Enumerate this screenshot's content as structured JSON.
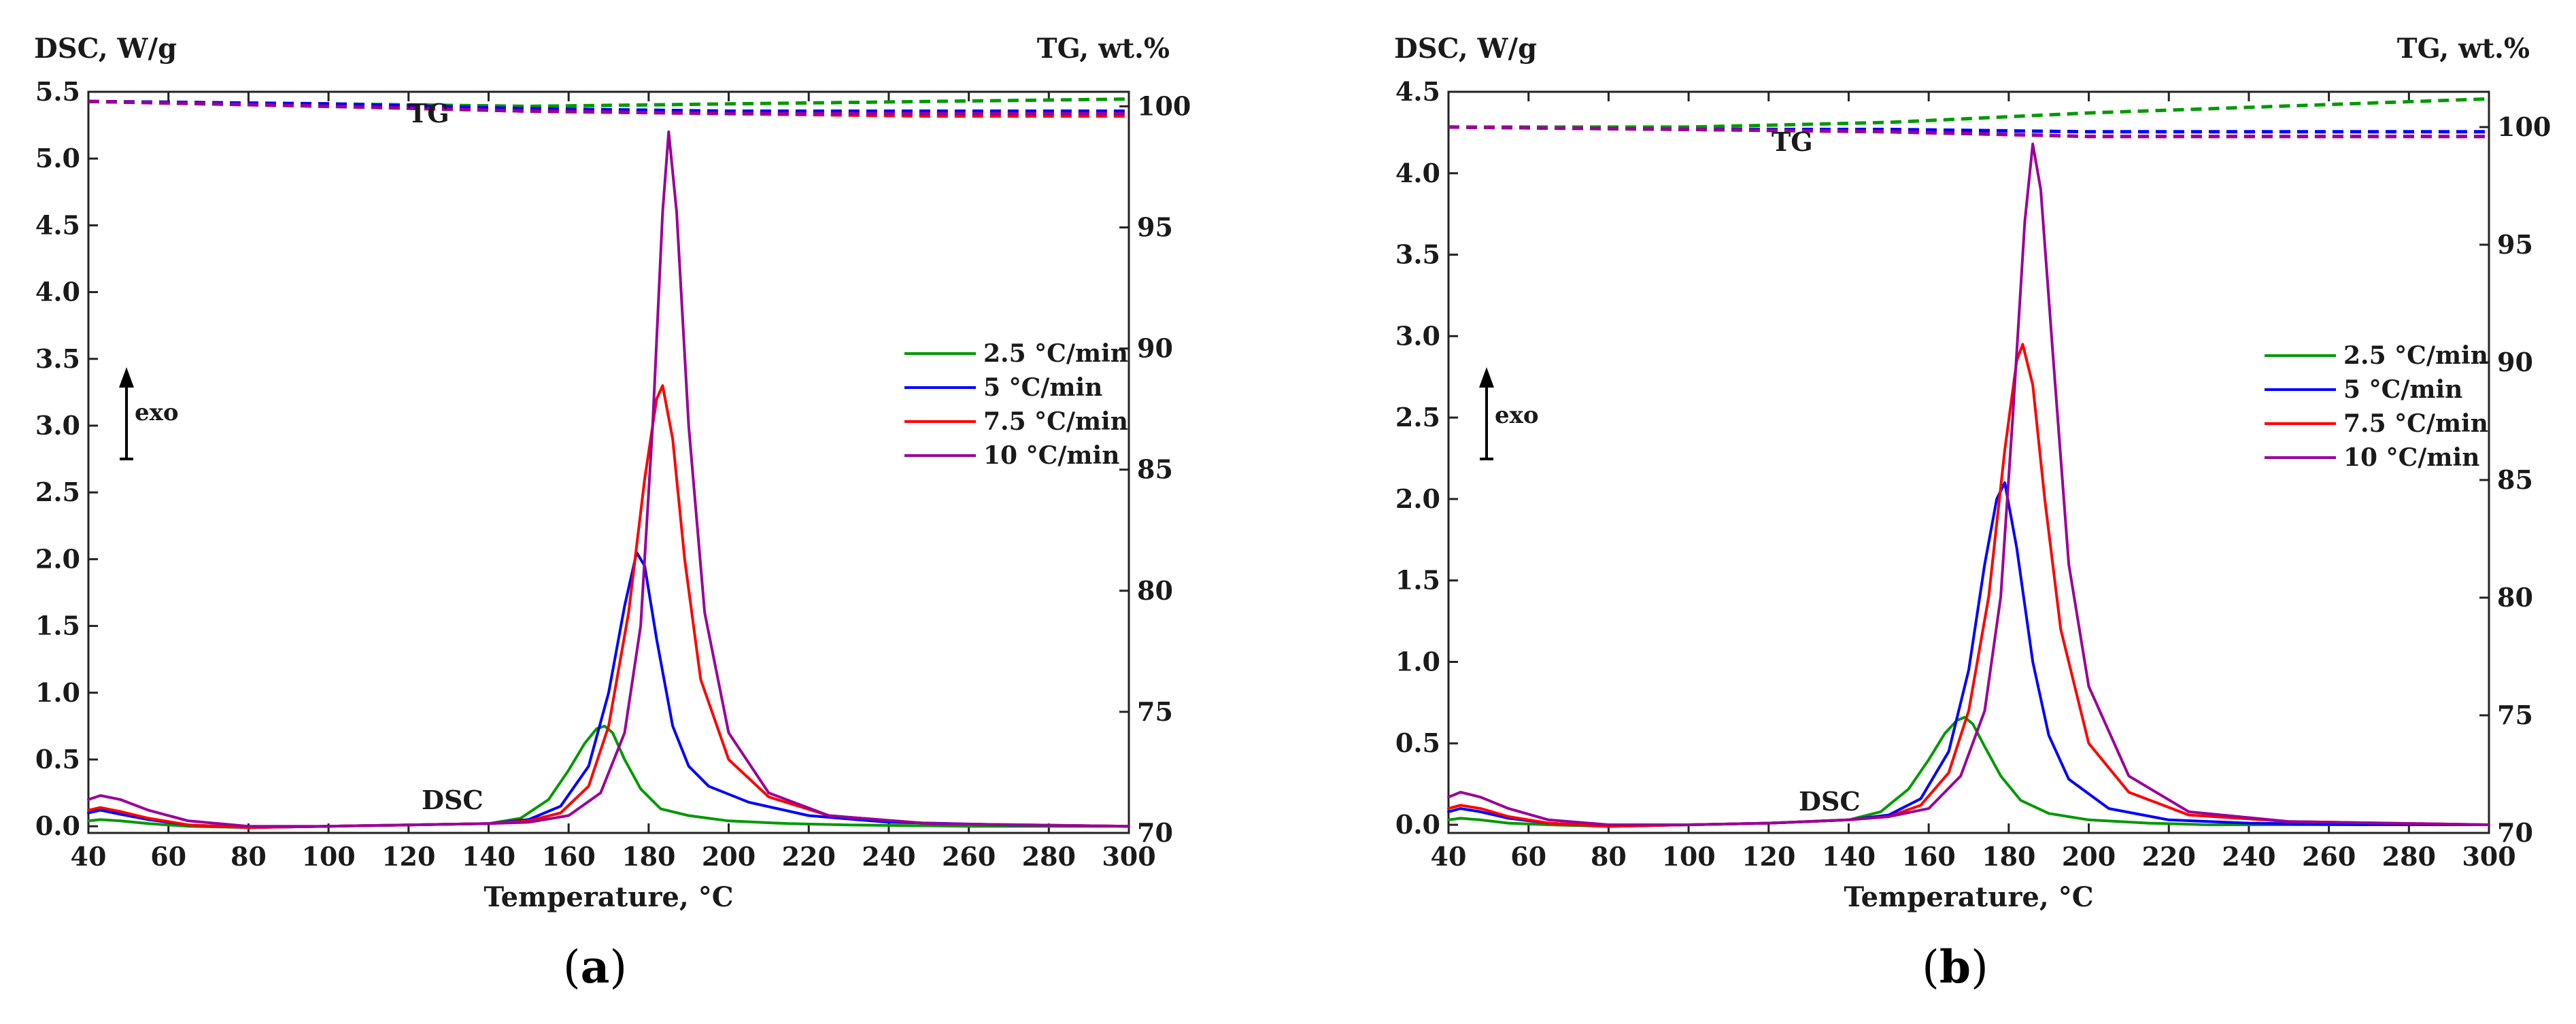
{
  "chart_data": [
    {
      "panel_label": "(a)",
      "panel_letter": "a",
      "type": "line",
      "left_axis_title": "DSC, W/g",
      "right_axis_title": "TG, wt.%",
      "xlabel": "Temperature, °C",
      "xlim": [
        40,
        300
      ],
      "ylim_left": [
        -0.05,
        5.5
      ],
      "ylim_right": [
        70,
        100.6
      ],
      "x_ticks": [
        40,
        60,
        80,
        100,
        120,
        140,
        160,
        180,
        200,
        220,
        240,
        260,
        280,
        300
      ],
      "y_left_ticks": [
        "0.0",
        "0.5",
        "1.0",
        "1.5",
        "2.0",
        "2.5",
        "3.0",
        "3.5",
        "4.0",
        "4.5",
        "5.0",
        "5.5"
      ],
      "y_right_ticks": [
        70,
        75,
        80,
        85,
        90,
        95,
        100
      ],
      "annotations": {
        "dsc_label": "DSC",
        "tg_label": "TG",
        "exo_label": "exo"
      },
      "legend": {
        "placement": "right",
        "entries": [
          "2.5 °C/min",
          "5 °C/min",
          "7.5 °C/min",
          "10 °C/min"
        ]
      },
      "series": [
        {
          "name": "2.5 °C/min",
          "color": "#009900",
          "dsc": {
            "x": [
              40,
              43,
              48,
              55,
              65,
              80,
              100,
              120,
              140,
              148,
              155,
              160,
              164,
              167,
              169,
              171,
              174,
              178,
              183,
              190,
              200,
              215,
              230,
              260,
              300
            ],
            "y": [
              0.04,
              0.05,
              0.04,
              0.02,
              0.0,
              -0.01,
              0.0,
              0.01,
              0.02,
              0.06,
              0.2,
              0.42,
              0.62,
              0.73,
              0.75,
              0.7,
              0.5,
              0.28,
              0.13,
              0.08,
              0.04,
              0.02,
              0.01,
              0.0,
              0.0
            ]
          },
          "tg": {
            "x": [
              40,
              100,
              150,
              200,
              250,
              300
            ],
            "y": [
              100.2,
              100.1,
              100.0,
              100.1,
              100.2,
              100.3
            ]
          }
        },
        {
          "name": "5 °C/min",
          "color": "#0000ff",
          "dsc": {
            "x": [
              40,
              43,
              48,
              55,
              65,
              80,
              100,
              120,
              140,
              150,
              158,
              165,
              170,
              174,
              177,
              179,
              182,
              186,
              190,
              195,
              205,
              220,
              240,
              270,
              300
            ],
            "y": [
              0.1,
              0.12,
              0.09,
              0.05,
              0.01,
              -0.01,
              0.0,
              0.01,
              0.02,
              0.05,
              0.15,
              0.45,
              1.0,
              1.65,
              2.05,
              1.95,
              1.4,
              0.75,
              0.45,
              0.3,
              0.18,
              0.08,
              0.03,
              0.01,
              0.0
            ]
          },
          "tg": {
            "x": [
              40,
              100,
              150,
              200,
              250,
              300
            ],
            "y": [
              100.2,
              100.1,
              99.9,
              99.8,
              99.8,
              99.8
            ]
          }
        },
        {
          "name": "7.5 °C/min",
          "color": "#ff0000",
          "dsc": {
            "x": [
              40,
              43,
              48,
              55,
              65,
              80,
              100,
              120,
              140,
              150,
              158,
              165,
              170,
              175,
              179,
              182,
              183.5,
              186,
              189,
              193,
              200,
              210,
              225,
              250,
              300
            ],
            "y": [
              0.12,
              0.14,
              0.11,
              0.06,
              0.01,
              -0.01,
              0.0,
              0.01,
              0.02,
              0.04,
              0.1,
              0.3,
              0.75,
              1.6,
              2.6,
              3.2,
              3.3,
              2.9,
              2.0,
              1.1,
              0.5,
              0.22,
              0.08,
              0.02,
              0.0
            ]
          },
          "tg": {
            "x": [
              40,
              100,
              150,
              200,
              250,
              300
            ],
            "y": [
              100.2,
              100.0,
              99.8,
              99.7,
              99.6,
              99.6
            ]
          }
        },
        {
          "name": "10 °C/min",
          "color": "#990099",
          "dsc": {
            "x": [
              40,
              43,
              48,
              55,
              65,
              80,
              100,
              120,
              140,
              150,
              160,
              168,
              174,
              178,
              181,
              183.5,
              185,
              187,
              190,
              194,
              200,
              210,
              225,
              250,
              300
            ],
            "y": [
              0.2,
              0.23,
              0.2,
              0.12,
              0.04,
              0.0,
              0.0,
              0.01,
              0.02,
              0.03,
              0.08,
              0.25,
              0.7,
              1.5,
              3.0,
              4.6,
              5.2,
              4.6,
              3.0,
              1.6,
              0.7,
              0.25,
              0.08,
              0.02,
              0.0
            ]
          },
          "tg": {
            "x": [
              40,
              100,
              150,
              200,
              250,
              300
            ],
            "y": [
              100.2,
              100.0,
              99.8,
              99.7,
              99.7,
              99.7
            ]
          }
        }
      ]
    },
    {
      "panel_label": "(b)",
      "panel_letter": "b",
      "type": "line",
      "left_axis_title": "DSC, W/g",
      "right_axis_title": "TG, wt.%",
      "xlabel": "Temperature, °C",
      "xlim": [
        40,
        300
      ],
      "ylim_left": [
        -0.05,
        4.5
      ],
      "ylim_right": [
        70,
        101.5
      ],
      "x_ticks": [
        40,
        60,
        80,
        100,
        120,
        140,
        160,
        180,
        200,
        220,
        240,
        260,
        280,
        300
      ],
      "y_left_ticks": [
        "0.0",
        "0.5",
        "1.0",
        "1.5",
        "2.0",
        "2.5",
        "3.0",
        "3.5",
        "4.0",
        "4.5"
      ],
      "y_right_ticks": [
        70,
        75,
        80,
        85,
        90,
        95,
        100
      ],
      "annotations": {
        "dsc_label": "DSC",
        "tg_label": "TG",
        "exo_label": "exo"
      },
      "legend": {
        "placement": "right",
        "entries": [
          "2.5 °C/min",
          "5 °C/min",
          "7.5 °C/min",
          "10 °C/min"
        ]
      },
      "series": [
        {
          "name": "2.5 °C/min",
          "color": "#009900",
          "dsc": {
            "x": [
              40,
              43,
              48,
              55,
              65,
              80,
              100,
              120,
              140,
              148,
              155,
              160,
              164,
              167,
              169,
              171,
              174,
              178,
              183,
              190,
              200,
              215,
              230,
              260,
              300
            ],
            "y": [
              0.03,
              0.04,
              0.03,
              0.01,
              0.0,
              -0.01,
              0.0,
              0.01,
              0.03,
              0.08,
              0.22,
              0.4,
              0.56,
              0.64,
              0.66,
              0.62,
              0.48,
              0.3,
              0.15,
              0.07,
              0.03,
              0.01,
              0.0,
              0.0,
              0.0
            ]
          },
          "tg": {
            "x": [
              40,
              100,
              150,
              200,
              250,
              300
            ],
            "y": [
              100.0,
              100.0,
              100.2,
              100.6,
              100.9,
              101.2
            ]
          }
        },
        {
          "name": "5 °C/min",
          "color": "#0000ff",
          "dsc": {
            "x": [
              40,
              43,
              48,
              55,
              65,
              80,
              100,
              120,
              140,
              150,
              158,
              165,
              170,
              174,
              177,
              179,
              182,
              186,
              190,
              195,
              205,
              220,
              240,
              270,
              300
            ],
            "y": [
              0.08,
              0.1,
              0.08,
              0.04,
              0.01,
              -0.01,
              0.0,
              0.01,
              0.03,
              0.06,
              0.16,
              0.45,
              0.95,
              1.6,
              2.0,
              2.1,
              1.7,
              1.0,
              0.55,
              0.28,
              0.1,
              0.03,
              0.01,
              0.0,
              0.0
            ]
          },
          "tg": {
            "x": [
              40,
              100,
              150,
              200,
              250,
              300
            ],
            "y": [
              100.0,
              99.9,
              99.9,
              99.8,
              99.8,
              99.8
            ]
          }
        },
        {
          "name": "7.5 °C/min",
          "color": "#ff0000",
          "dsc": {
            "x": [
              40,
              43,
              48,
              55,
              65,
              80,
              100,
              120,
              140,
              150,
              158,
              165,
              170,
              175,
              179,
              182,
              183.5,
              186,
              189,
              193,
              200,
              210,
              225,
              250,
              300
            ],
            "y": [
              0.1,
              0.12,
              0.1,
              0.05,
              0.01,
              -0.01,
              0.0,
              0.01,
              0.03,
              0.05,
              0.12,
              0.32,
              0.7,
              1.4,
              2.3,
              2.85,
              2.95,
              2.7,
              2.0,
              1.2,
              0.5,
              0.2,
              0.06,
              0.02,
              0.0
            ]
          },
          "tg": {
            "x": [
              40,
              100,
              150,
              200,
              250,
              300
            ],
            "y": [
              100.0,
              99.9,
              99.8,
              99.6,
              99.6,
              99.6
            ]
          }
        },
        {
          "name": "10 °C/min",
          "color": "#990099",
          "dsc": {
            "x": [
              40,
              43,
              48,
              55,
              65,
              80,
              100,
              120,
              140,
              150,
              160,
              168,
              174,
              178,
              181,
              184,
              186,
              188,
              191,
              195,
              200,
              210,
              225,
              250,
              300
            ],
            "y": [
              0.17,
              0.2,
              0.17,
              0.1,
              0.03,
              0.0,
              0.0,
              0.01,
              0.03,
              0.05,
              0.1,
              0.3,
              0.7,
              1.4,
              2.5,
              3.7,
              4.18,
              3.9,
              2.9,
              1.6,
              0.85,
              0.3,
              0.08,
              0.02,
              0.0
            ]
          },
          "tg": {
            "x": [
              40,
              100,
              150,
              200,
              250,
              300
            ],
            "y": [
              100.0,
              99.9,
              99.8,
              99.6,
              99.6,
              99.6
            ]
          }
        }
      ]
    }
  ]
}
